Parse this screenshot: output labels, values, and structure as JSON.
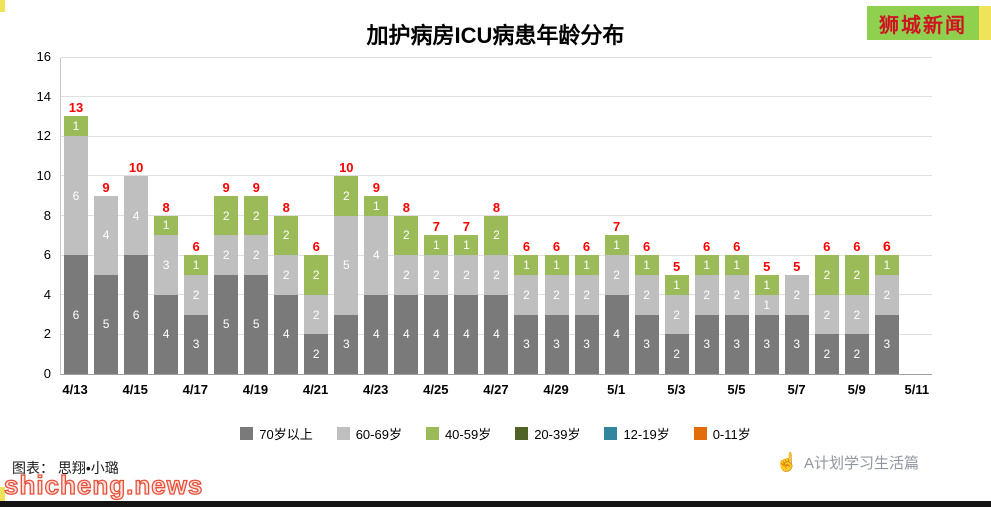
{
  "page": {
    "badge": "狮城新闻",
    "credit": "图表： 思翔•小璐",
    "watermark": "shicheng.news",
    "brand": "A计划学习生活篇",
    "accent_green": "#8fd14f",
    "accent_yellow": "#efe459",
    "badge_text_color": "#cf1322"
  },
  "chart_data": {
    "type": "bar",
    "stacked": true,
    "title": "加护病房ICU病患年龄分布",
    "categories": [
      "4/13",
      "4/14",
      "4/15",
      "4/16",
      "4/17",
      "4/18",
      "4/19",
      "4/20",
      "4/21",
      "4/22",
      "4/23",
      "4/24",
      "4/25",
      "4/26",
      "4/27",
      "4/28",
      "4/29",
      "4/30",
      "5/1",
      "5/2",
      "5/3",
      "5/4",
      "5/5",
      "5/6",
      "5/7",
      "5/8",
      "5/9",
      "5/10"
    ],
    "x_tick_labels": [
      "4/13",
      "4/15",
      "4/17",
      "4/19",
      "4/21",
      "4/23",
      "4/25",
      "4/27",
      "4/29",
      "5/1",
      "5/3",
      "5/5",
      "5/7",
      "5/9",
      "5/11"
    ],
    "y_ticks": [
      0,
      2,
      4,
      6,
      8,
      10,
      12,
      14,
      16
    ],
    "ylim": [
      0,
      16
    ],
    "grid": true,
    "legend_position": "bottom",
    "total_label_color": "#ff0000",
    "emphasize_last_total": true,
    "series": [
      {
        "name": "70岁以上",
        "color": "#7a7a7a",
        "values": [
          6,
          5,
          6,
          4,
          3,
          5,
          5,
          4,
          2,
          3,
          4,
          4,
          4,
          4,
          4,
          3,
          3,
          3,
          4,
          3,
          2,
          3,
          3,
          3,
          3,
          2,
          2,
          3
        ]
      },
      {
        "name": "60-69岁",
        "color": "#bfbfbf",
        "values": [
          6,
          4,
          4,
          3,
          2,
          2,
          2,
          2,
          2,
          5,
          4,
          2,
          2,
          2,
          2,
          2,
          2,
          2,
          2,
          2,
          2,
          2,
          2,
          1,
          2,
          2,
          2,
          2
        ]
      },
      {
        "name": "40-59岁",
        "color": "#9bbb59",
        "values": [
          1,
          0,
          0,
          1,
          1,
          2,
          2,
          2,
          2,
          2,
          1,
          2,
          1,
          1,
          2,
          1,
          1,
          1,
          1,
          1,
          1,
          1,
          1,
          1,
          0,
          2,
          2,
          1
        ]
      },
      {
        "name": "20-39岁",
        "color": "#4f6228",
        "values": [
          0,
          0,
          0,
          0,
          0,
          0,
          0,
          0,
          0,
          0,
          0,
          0,
          0,
          0,
          0,
          0,
          0,
          0,
          0,
          0,
          0,
          0,
          0,
          0,
          0,
          0,
          0,
          0
        ]
      },
      {
        "name": "12-19岁",
        "color": "#31859c",
        "values": [
          0,
          0,
          0,
          0,
          0,
          0,
          0,
          0,
          0,
          0,
          0,
          0,
          0,
          0,
          0,
          0,
          0,
          0,
          0,
          0,
          0,
          0,
          0,
          0,
          0,
          0,
          0,
          0
        ]
      },
      {
        "name": "0-11岁",
        "color": "#e36c0a",
        "values": [
          0,
          0,
          0,
          0,
          0,
          0,
          0,
          0,
          0,
          0,
          0,
          0,
          0,
          0,
          0,
          0,
          0,
          0,
          0,
          0,
          0,
          0,
          0,
          0,
          0,
          0,
          0,
          0
        ]
      }
    ],
    "totals": [
      13,
      9,
      10,
      8,
      6,
      9,
      9,
      8,
      6,
      10,
      9,
      8,
      7,
      7,
      8,
      6,
      6,
      6,
      7,
      6,
      5,
      6,
      6,
      5,
      5,
      6,
      6,
      6
    ]
  }
}
